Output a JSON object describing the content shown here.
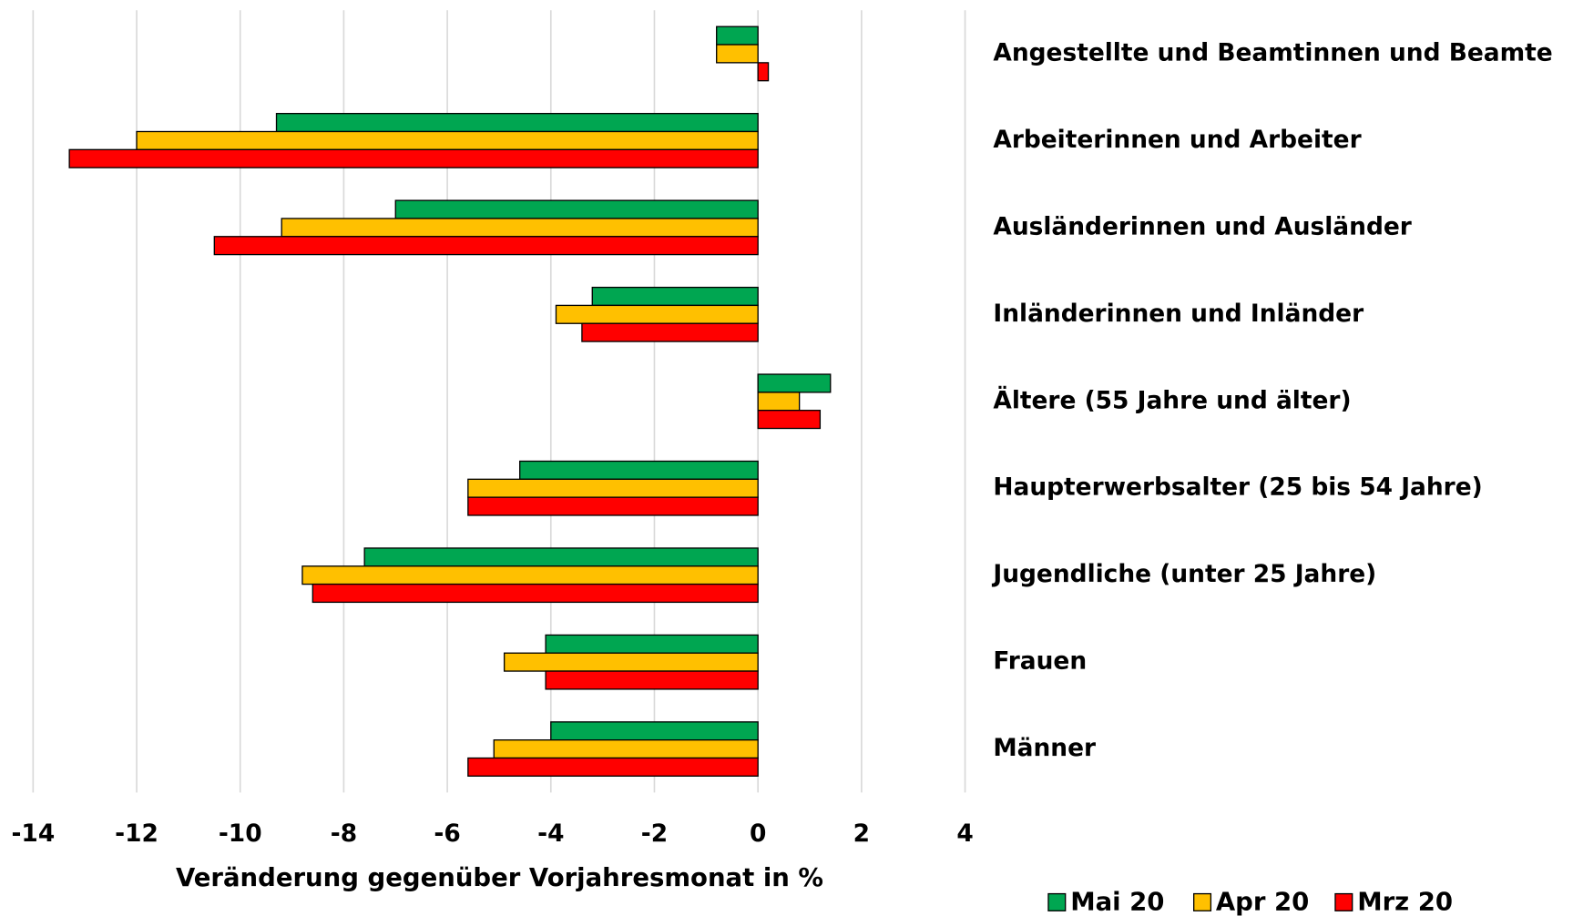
{
  "chart_data": {
    "type": "bar",
    "orientation": "horizontal",
    "x_label": "Veränderung gegenüber Vorjahresmonat in %",
    "categories": [
      "Angestellte und Beamtinnen und Beamte",
      "Arbeiterinnen und Arbeiter",
      "Ausländerinnen und Ausländer",
      "Inländerinnen und Inländer",
      "Ältere (55 Jahre und älter)",
      "Haupterwerbsalter (25 bis 54 Jahre)",
      "Jugendliche (unter 25 Jahre)",
      "Frauen",
      "Männer"
    ],
    "series": [
      {
        "name": "Mai 20",
        "color": "#00a651",
        "values": [
          -0.8,
          -9.3,
          -7.0,
          -3.2,
          1.4,
          -4.6,
          -7.6,
          -4.1,
          -4.0
        ]
      },
      {
        "name": "Apr 20",
        "color": "#ffc000",
        "values": [
          -0.8,
          -12.0,
          -9.2,
          -3.9,
          0.8,
          -5.6,
          -8.8,
          -4.9,
          -5.1
        ]
      },
      {
        "name": "Mrz 20",
        "color": "#ff0000",
        "values": [
          0.2,
          -13.3,
          -10.5,
          -3.4,
          1.2,
          -5.6,
          -8.6,
          -4.1,
          -5.6
        ]
      }
    ],
    "xlim": [
      -14,
      4
    ],
    "xticks": [
      -14,
      -12,
      -10,
      -8,
      -6,
      -4,
      -2,
      0,
      2,
      4
    ],
    "grid": true,
    "legend": "bottom-right"
  }
}
